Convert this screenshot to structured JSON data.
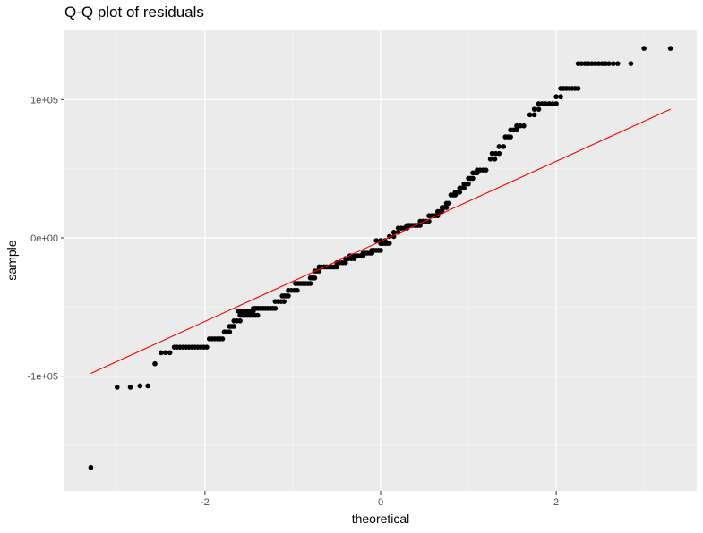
{
  "chart_data": {
    "type": "scatter",
    "title": "Q-Q plot of residuals",
    "xlabel": "theoretical",
    "ylabel": "sample",
    "xlim": [
      -3.6,
      3.6
    ],
    "ylim": [
      -183000,
      150000
    ],
    "x_ticks": [
      {
        "value": -2,
        "label": "-2"
      },
      {
        "value": 0,
        "label": "0"
      },
      {
        "value": 2,
        "label": "2"
      }
    ],
    "y_ticks": [
      {
        "value": -100000,
        "label": "-1e+05"
      },
      {
        "value": 0,
        "label": "0e+00"
      },
      {
        "value": 100000,
        "label": "1e+05"
      }
    ],
    "grid": true,
    "background": "#ebebeb",
    "point_color": "#000000",
    "line_color": "#ff0000",
    "reference_line": {
      "x": [
        -3.3,
        3.3
      ],
      "y": [
        -98000,
        93000
      ]
    },
    "segments": [
      {
        "x0": -3.3,
        "x1": -3.3,
        "y": -166000,
        "n": 1
      },
      {
        "x0": -3.0,
        "x1": -3.0,
        "y": -108000,
        "n": 1
      },
      {
        "x0": -2.85,
        "x1": -2.85,
        "y": -108000,
        "n": 1
      },
      {
        "x0": -2.74,
        "x1": -2.65,
        "y": -107000,
        "n": 2
      },
      {
        "x0": -2.57,
        "x1": -2.57,
        "y": -91000,
        "n": 1
      },
      {
        "x0": -2.5,
        "x1": -2.4,
        "y": -83000,
        "n": 3
      },
      {
        "x0": -2.35,
        "x1": -1.98,
        "y": -79000,
        "n": 12
      },
      {
        "x0": -1.95,
        "x1": -1.8,
        "y": -73000,
        "n": 6
      },
      {
        "x0": -1.78,
        "x1": -1.72,
        "y": -68000,
        "n": 3
      },
      {
        "x0": -1.72,
        "x1": -1.67,
        "y": -64000,
        "n": 3
      },
      {
        "x0": -1.67,
        "x1": -1.6,
        "y": -60000,
        "n": 3
      },
      {
        "x0": -1.6,
        "x1": -1.4,
        "y": -56000,
        "n": 8
      },
      {
        "x0": -1.62,
        "x1": -1.45,
        "y": -53000,
        "n": 7
      },
      {
        "x0": -1.45,
        "x1": -1.2,
        "y": -51000,
        "n": 10
      },
      {
        "x0": -1.2,
        "x1": -1.1,
        "y": -46000,
        "n": 4
      },
      {
        "x0": -1.12,
        "x1": -1.05,
        "y": -42000,
        "n": 4
      },
      {
        "x0": -1.05,
        "x1": -0.95,
        "y": -38000,
        "n": 4
      },
      {
        "x0": -0.97,
        "x1": -0.8,
        "y": -33000,
        "n": 7
      },
      {
        "x0": -0.8,
        "x1": -0.75,
        "y": -29000,
        "n": 3
      },
      {
        "x0": -0.75,
        "x1": -0.7,
        "y": -24000,
        "n": 3
      },
      {
        "x0": -0.7,
        "x1": -0.5,
        "y": -21000,
        "n": 8
      },
      {
        "x0": -0.5,
        "x1": -0.4,
        "y": -18000,
        "n": 4
      },
      {
        "x0": -0.4,
        "x1": -0.3,
        "y": -15000,
        "n": 4
      },
      {
        "x0": -0.35,
        "x1": -0.2,
        "y": -13000,
        "n": 6
      },
      {
        "x0": -0.2,
        "x1": -0.1,
        "y": -11000,
        "n": 5
      },
      {
        "x0": -0.1,
        "x1": 0.0,
        "y": -9000,
        "n": 5
      },
      {
        "x0": 0.0,
        "x1": 0.1,
        "y": -4000,
        "n": 5
      },
      {
        "x0": -0.05,
        "x1": 0.05,
        "y": -2000,
        "n": 3
      },
      {
        "x0": 0.1,
        "x1": 0.15,
        "y": 1000,
        "n": 2
      },
      {
        "x0": 0.15,
        "x1": 0.2,
        "y": 4000,
        "n": 2
      },
      {
        "x0": 0.2,
        "x1": 0.3,
        "y": 7000,
        "n": 4
      },
      {
        "x0": 0.3,
        "x1": 0.45,
        "y": 9000,
        "n": 6
      },
      {
        "x0": 0.45,
        "x1": 0.55,
        "y": 12000,
        "n": 4
      },
      {
        "x0": 0.55,
        "x1": 0.65,
        "y": 16000,
        "n": 4
      },
      {
        "x0": 0.65,
        "x1": 0.7,
        "y": 19000,
        "n": 3
      },
      {
        "x0": 0.7,
        "x1": 0.75,
        "y": 22000,
        "n": 3
      },
      {
        "x0": 0.75,
        "x1": 0.78,
        "y": 25000,
        "n": 2
      },
      {
        "x0": 0.8,
        "x1": 0.85,
        "y": 31000,
        "n": 3
      },
      {
        "x0": 0.85,
        "x1": 0.9,
        "y": 33000,
        "n": 3
      },
      {
        "x0": 0.9,
        "x1": 0.95,
        "y": 36000,
        "n": 3
      },
      {
        "x0": 0.95,
        "x1": 1.0,
        "y": 39000,
        "n": 3
      },
      {
        "x0": 1.0,
        "x1": 1.05,
        "y": 43000,
        "n": 3
      },
      {
        "x0": 1.05,
        "x1": 1.1,
        "y": 47000,
        "n": 3
      },
      {
        "x0": 1.1,
        "x1": 1.2,
        "y": 49000,
        "n": 4
      },
      {
        "x0": 1.25,
        "x1": 1.3,
        "y": 57000,
        "n": 2
      },
      {
        "x0": 1.27,
        "x1": 1.35,
        "y": 61000,
        "n": 3
      },
      {
        "x0": 1.35,
        "x1": 1.4,
        "y": 66000,
        "n": 2
      },
      {
        "x0": 1.42,
        "x1": 1.48,
        "y": 73000,
        "n": 3
      },
      {
        "x0": 1.48,
        "x1": 1.55,
        "y": 78000,
        "n": 3
      },
      {
        "x0": 1.55,
        "x1": 1.63,
        "y": 81000,
        "n": 3
      },
      {
        "x0": 1.7,
        "x1": 1.75,
        "y": 89000,
        "n": 2
      },
      {
        "x0": 1.75,
        "x1": 1.8,
        "y": 93000,
        "n": 2
      },
      {
        "x0": 1.8,
        "x1": 2.0,
        "y": 97000,
        "n": 6
      },
      {
        "x0": 2.0,
        "x1": 2.05,
        "y": 102000,
        "n": 2
      },
      {
        "x0": 2.05,
        "x1": 2.25,
        "y": 108000,
        "n": 7
      },
      {
        "x0": 2.25,
        "x1": 2.6,
        "y": 126000,
        "n": 10
      },
      {
        "x0": 2.65,
        "x1": 2.7,
        "y": 126000,
        "n": 2
      },
      {
        "x0": 2.85,
        "x1": 2.85,
        "y": 126000,
        "n": 1
      },
      {
        "x0": 3.0,
        "x1": 3.0,
        "y": 137000,
        "n": 1
      },
      {
        "x0": 3.3,
        "x1": 3.3,
        "y": 137000,
        "n": 1
      }
    ]
  }
}
